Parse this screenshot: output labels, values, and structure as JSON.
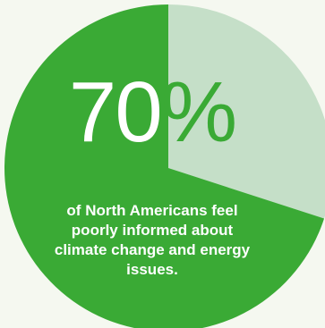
{
  "chart_data": {
    "type": "pie",
    "values": [
      70,
      30
    ],
    "colors": [
      "#3aaa35",
      "#c5dfc8"
    ],
    "start_angle_degrees": 0
  },
  "stat": {
    "number": "70",
    "unit": "%"
  },
  "caption": "of North Americans feel poorly informed about climate change and energy issues.",
  "colors": {
    "background": "#f5f8f0",
    "text": "#ffffff",
    "percent_sign": "#3aaa35"
  }
}
